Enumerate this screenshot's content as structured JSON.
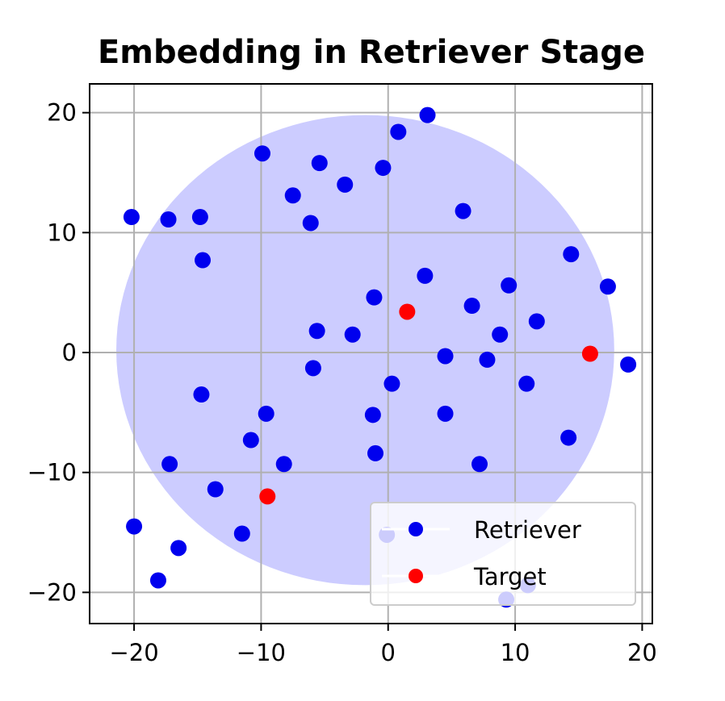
{
  "chart_data": {
    "type": "scatter",
    "title": "Embedding in Retriever Stage",
    "xlabel": "",
    "ylabel": "",
    "xlim": [
      -23.5,
      20.8
    ],
    "ylim": [
      -22.6,
      22.4
    ],
    "xticks": [
      -20,
      -10,
      0,
      10,
      20
    ],
    "yticks": [
      -20,
      -10,
      0,
      10,
      20
    ],
    "xtick_labels": [
      "−20",
      "−10",
      "0",
      "10",
      "20"
    ],
    "ytick_labels": [
      "−20",
      "−10",
      "0",
      "10",
      "20"
    ],
    "grid": true,
    "legend_position": "lower-right",
    "circle": {
      "center": [
        -1.8,
        0.2
      ],
      "radius": 19.6,
      "color": "#ccccff"
    },
    "series": [
      {
        "name": "Retriever",
        "color": "#0000ee",
        "points": [
          [
            3.1,
            19.8
          ],
          [
            0.8,
            18.4
          ],
          [
            -9.9,
            16.6
          ],
          [
            -5.4,
            15.8
          ],
          [
            -3.4,
            14.0
          ],
          [
            -0.4,
            15.4
          ],
          [
            -7.5,
            13.1
          ],
          [
            -20.2,
            11.3
          ],
          [
            -17.3,
            11.1
          ],
          [
            -14.8,
            11.3
          ],
          [
            -6.1,
            10.8
          ],
          [
            5.9,
            11.8
          ],
          [
            -14.6,
            7.7
          ],
          [
            14.4,
            8.2
          ],
          [
            17.3,
            5.5
          ],
          [
            2.9,
            6.4
          ],
          [
            9.5,
            5.6
          ],
          [
            -1.1,
            4.6
          ],
          [
            6.6,
            3.9
          ],
          [
            11.7,
            2.6
          ],
          [
            8.8,
            1.5
          ],
          [
            -5.6,
            1.8
          ],
          [
            -2.8,
            1.5
          ],
          [
            4.5,
            -0.3
          ],
          [
            7.8,
            -0.6
          ],
          [
            18.9,
            -1.0
          ],
          [
            -5.9,
            -1.3
          ],
          [
            0.3,
            -2.6
          ],
          [
            10.9,
            -2.6
          ],
          [
            -14.7,
            -3.5
          ],
          [
            -9.6,
            -5.1
          ],
          [
            -1.2,
            -5.2
          ],
          [
            4.5,
            -5.1
          ],
          [
            -10.8,
            -7.3
          ],
          [
            14.2,
            -7.1
          ],
          [
            -17.2,
            -9.3
          ],
          [
            -8.2,
            -9.3
          ],
          [
            -1.0,
            -8.4
          ],
          [
            7.2,
            -9.3
          ],
          [
            -13.6,
            -11.4
          ],
          [
            -20.0,
            -14.5
          ],
          [
            -11.5,
            -15.1
          ],
          [
            -16.5,
            -16.3
          ],
          [
            -18.1,
            -19.0
          ],
          [
            -0.1,
            -15.2
          ],
          [
            9.3,
            -20.6
          ],
          [
            11.0,
            -19.4
          ]
        ]
      },
      {
        "name": "Target",
        "color": "#ff0000",
        "points": [
          [
            1.5,
            3.4
          ],
          [
            15.9,
            -0.1
          ],
          [
            -9.5,
            -12.0
          ]
        ]
      }
    ]
  }
}
